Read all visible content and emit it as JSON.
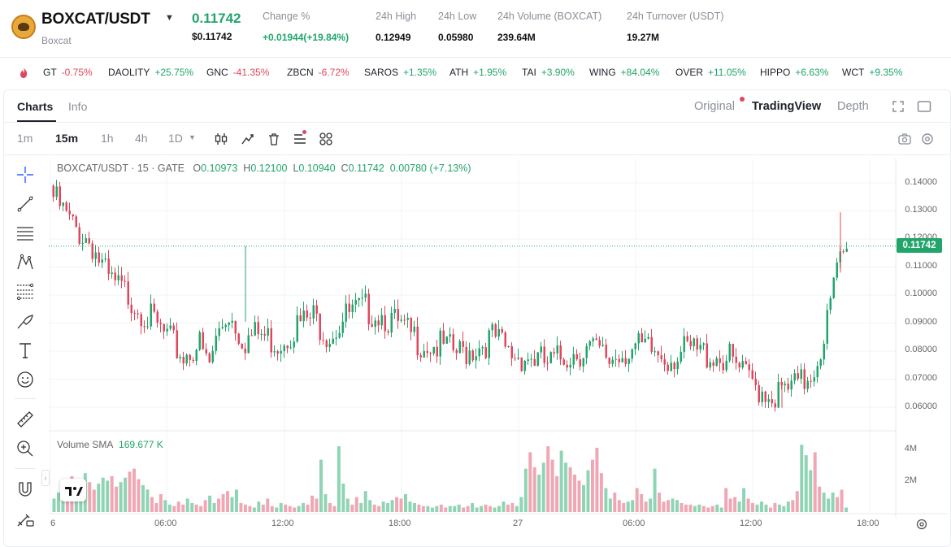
{
  "header": {
    "pair": "BOXCAT/USDT",
    "pair_sub": "Boxcat",
    "last_price": "0.11742",
    "last_price_usd": "$0.11742",
    "stats": [
      {
        "label": "Change %",
        "value": "+0.01944(+19.84%)",
        "color": "green"
      },
      {
        "label": "24h High",
        "value": "0.12949"
      },
      {
        "label": "24h Low",
        "value": "0.05980"
      },
      {
        "label": "24h Volume (BOXCAT)",
        "value": "239.64M"
      },
      {
        "label": "24h Turnover (USDT)",
        "value": "19.27M"
      }
    ]
  },
  "ticker": [
    {
      "symbol": "GT",
      "change": "-0.75%",
      "dir": "down"
    },
    {
      "symbol": "DAOLITY",
      "change": "+25.75%",
      "dir": "up"
    },
    {
      "symbol": "GNC",
      "change": "-41.35%",
      "dir": "down"
    },
    {
      "symbol": "ZBCN",
      "change": "-6.72%",
      "dir": "down"
    },
    {
      "symbol": "SAROS",
      "change": "+1.35%",
      "dir": "up"
    },
    {
      "symbol": "ATH",
      "change": "+1.95%",
      "dir": "up"
    },
    {
      "symbol": "TAI",
      "change": "+3.90%",
      "dir": "up"
    },
    {
      "symbol": "WING",
      "change": "+84.04%",
      "dir": "up"
    },
    {
      "symbol": "OVER",
      "change": "+11.05%",
      "dir": "up"
    },
    {
      "symbol": "HIPPO",
      "change": "+6.63%",
      "dir": "up"
    },
    {
      "symbol": "WCT",
      "change": "+9.35%",
      "dir": "up"
    }
  ],
  "tabs": {
    "charts": "Charts",
    "info": "Info"
  },
  "views": {
    "original": "Original",
    "tradingview": "TradingView",
    "depth": "Depth"
  },
  "timeframes": {
    "m1": "1m",
    "m15": "15m",
    "h1": "1h",
    "h4": "4h",
    "d1": "1D"
  },
  "chart": {
    "legend_symbol": "BOXCAT/USDT · 15 · GATE",
    "open_label": "O",
    "open": "0.10973",
    "high_label": "H",
    "high": "0.12100",
    "low_label": "L",
    "low": "0.10940",
    "close_label": "C",
    "close": "0.11742",
    "change": "0.00780 (+7.13%)",
    "current_price_tag": "0.11742",
    "volume_label": "Volume SMA",
    "volume_value": "169.677 K",
    "y_ticks": [
      "0.14000",
      "0.13000",
      "0.12000",
      "0.11000",
      "0.10000",
      "0.09000",
      "0.08000",
      "0.07000",
      "0.06000"
    ],
    "vol_ticks": [
      "4M",
      "2M"
    ],
    "x_ticks": [
      "6",
      "06:00",
      "12:00",
      "18:00",
      "27",
      "06:00",
      "12:00",
      "18:00"
    ]
  },
  "chart_data": {
    "type": "candlestick",
    "title": "BOXCAT/USDT · 15 · GATE",
    "ylim": [
      0.055,
      0.145
    ],
    "y_ticks": [
      0.14,
      0.13,
      0.12,
      0.11,
      0.1,
      0.09,
      0.08,
      0.07,
      0.06
    ],
    "x_ticks": [
      "6",
      "06:00",
      "12:00",
      "18:00",
      "27",
      "06:00",
      "12:00",
      "18:00"
    ],
    "series": [
      {
        "name": "Volume SMA",
        "values": [
          0.9,
          1.3,
          1.6,
          2.1,
          2.4,
          1.8,
          2.2,
          2.6,
          2.0,
          1.5,
          1.9,
          2.3,
          2.1,
          2.4,
          1.7,
          2.0,
          2.3,
          2.7,
          2.9,
          2.2,
          1.8,
          1.5,
          1.0,
          0.6,
          1.2,
          0.8,
          0.5,
          0.4,
          0.7,
          0.5,
          0.9,
          0.6,
          0.5,
          0.4,
          0.8,
          1.1,
          0.6,
          0.9,
          1.2,
          1.4,
          1.0,
          1.5,
          0.6,
          0.5,
          0.4,
          0.3,
          0.7,
          0.5,
          0.9,
          0.4,
          0.3,
          0.6,
          0.5,
          0.4,
          0.3,
          0.4,
          0.6,
          0.5,
          1.1,
          0.9,
          3.5,
          1.2,
          0.6,
          0.4,
          4.4,
          1.9,
          0.9,
          0.5,
          1.0,
          0.6,
          1.4,
          0.8,
          0.5,
          0.4,
          0.7,
          0.6,
          0.8,
          1.0,
          0.9,
          1.2,
          0.7,
          0.6,
          0.5,
          0.4,
          0.4,
          0.3,
          0.4,
          0.5,
          0.3,
          0.4,
          0.4,
          0.5,
          0.3,
          0.4,
          0.6,
          0.3,
          0.4,
          0.5,
          0.4,
          0.3,
          0.4,
          0.7,
          0.5,
          0.6,
          0.4,
          1.0,
          2.9,
          4.0,
          3.0,
          2.5,
          3.3,
          4.4,
          3.5,
          2.4,
          4.1,
          3.3,
          3.0,
          2.5,
          2.1,
          1.8,
          2.8,
          3.5,
          4.3,
          2.6,
          1.6,
          0.9,
          1.3,
          0.8,
          0.6,
          0.7,
          0.8,
          1.6,
          1.2,
          0.7,
          0.9,
          2.9,
          1.3,
          0.7,
          0.8,
          0.9,
          0.8,
          0.6,
          0.5,
          0.5,
          0.4,
          0.5,
          0.4,
          0.3,
          0.4,
          0.5,
          0.3,
          1.6,
          0.9,
          1.0,
          0.7,
          1.6,
          0.9,
          0.6,
          0.5,
          0.7,
          0.5,
          0.3,
          0.6,
          0.5,
          0.4,
          0.7,
          0.8,
          1.4,
          4.5,
          3.8,
          2.8,
          4.0,
          1.7,
          1.3,
          0.9,
          1.3,
          1.0,
          1.5,
          0.3
        ]
      }
    ],
    "ohlc_summary": {
      "open": 0.10973,
      "high": 0.121,
      "low": 0.1094,
      "close": 0.11742,
      "change": 0.0078,
      "change_pct": 7.13
    },
    "current_price": 0.11742
  },
  "colors": {
    "up": "#21a56b",
    "down": "#e0475d",
    "up_vol": "#8fd4b4",
    "down_vol": "#f0a7b3"
  }
}
